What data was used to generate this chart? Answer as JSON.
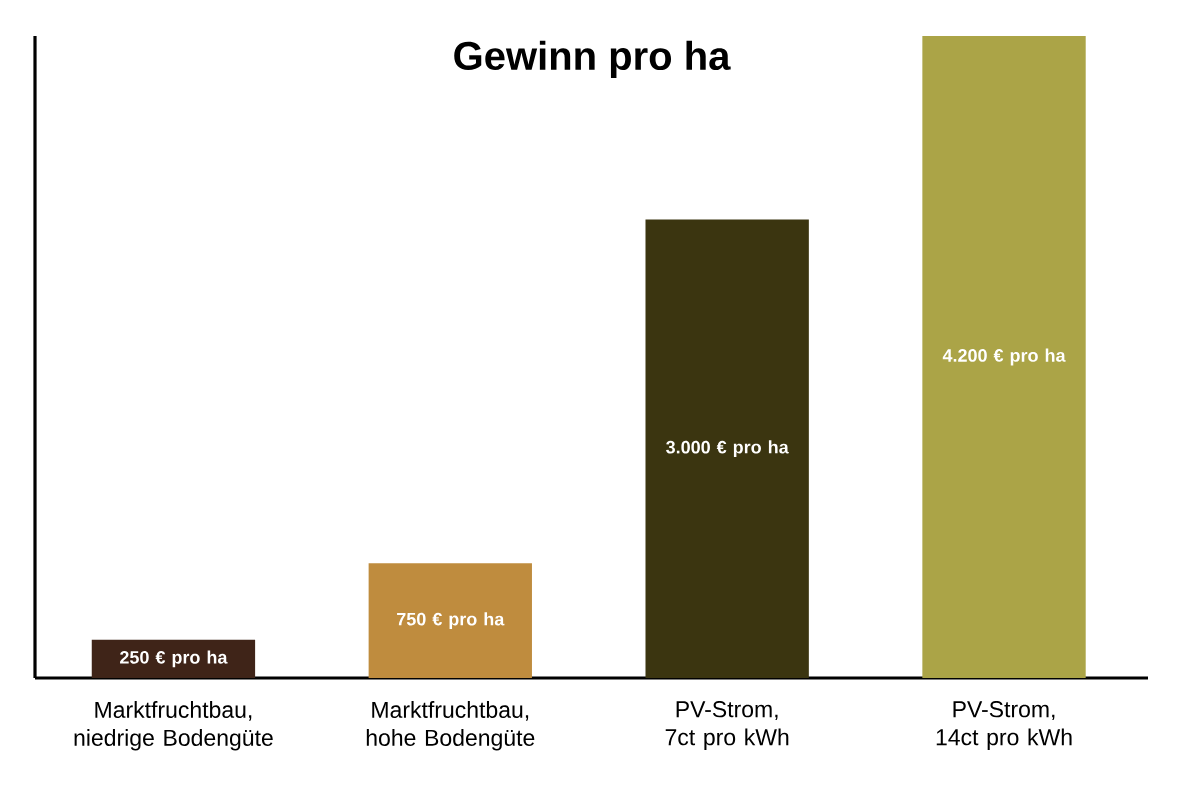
{
  "chart_data": {
    "type": "bar",
    "title": "Gewinn pro ha",
    "categories": [
      "Marktfruchtbau, niedrige Bodengüte",
      "Marktfruchtbau, hohe Bodengüte",
      "PV-Strom, 7ct pro kWh",
      "PV-Strom, 14ct pro kWh"
    ],
    "values": [
      250,
      750,
      3000,
      4200
    ],
    "colors": [
      "#3f2418",
      "#bf8c3e",
      "#3b3510",
      "#aba447"
    ],
    "value_labels": [
      "250 € pro ha",
      "750 € pro ha",
      "3.000 € pro ha",
      "4.200 € pro ha"
    ],
    "ylim": [
      0,
      4200
    ]
  }
}
